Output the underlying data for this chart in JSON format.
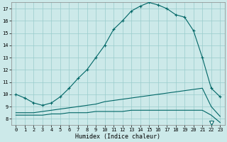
{
  "xlabel": "Humidex (Indice chaleur)",
  "xlim": [
    -0.5,
    23.5
  ],
  "ylim": [
    7.5,
    17.5
  ],
  "yticks": [
    8,
    9,
    10,
    11,
    12,
    13,
    14,
    15,
    16,
    17
  ],
  "xticks": [
    0,
    1,
    2,
    3,
    4,
    5,
    6,
    7,
    8,
    9,
    10,
    11,
    12,
    13,
    14,
    15,
    16,
    17,
    18,
    19,
    20,
    21,
    22,
    23
  ],
  "background_color": "#cce9e9",
  "grid_color": "#99cccc",
  "line_color": "#006666",
  "line1_x": [
    0,
    1,
    2,
    3,
    4,
    5,
    6,
    7,
    8,
    9,
    10,
    11,
    12,
    13,
    14,
    15,
    16,
    17,
    18,
    19,
    20,
    21,
    22,
    23
  ],
  "line1_y": [
    10.0,
    9.7,
    9.3,
    9.1,
    9.3,
    9.8,
    10.5,
    11.3,
    12.0,
    13.0,
    14.0,
    15.3,
    16.0,
    16.8,
    17.2,
    17.5,
    17.3,
    17.0,
    16.5,
    16.3,
    15.2,
    13.0,
    10.5,
    9.8
  ],
  "line2_x": [
    0,
    1,
    2,
    3,
    4,
    5,
    6,
    7,
    8,
    9,
    10,
    11,
    12,
    13,
    14,
    15,
    16,
    17,
    18,
    19,
    20,
    21,
    22,
    23
  ],
  "line2_y": [
    8.5,
    8.5,
    8.5,
    8.6,
    8.7,
    8.8,
    8.9,
    9.0,
    9.1,
    9.2,
    9.4,
    9.5,
    9.6,
    9.7,
    9.8,
    9.9,
    10.0,
    10.1,
    10.2,
    10.3,
    10.4,
    10.5,
    9.0,
    8.2
  ],
  "line3_x": [
    0,
    1,
    2,
    3,
    4,
    5,
    6,
    7,
    8,
    9,
    10,
    11,
    12,
    13,
    14,
    15,
    16,
    17,
    18,
    19,
    20,
    21,
    22,
    23
  ],
  "line3_y": [
    8.3,
    8.3,
    8.3,
    8.3,
    8.4,
    8.4,
    8.5,
    8.5,
    8.5,
    8.6,
    8.6,
    8.6,
    8.6,
    8.7,
    8.7,
    8.7,
    8.7,
    8.7,
    8.7,
    8.7,
    8.7,
    8.7,
    8.3,
    7.7
  ],
  "tri_x": 22,
  "tri_y": 7.7
}
